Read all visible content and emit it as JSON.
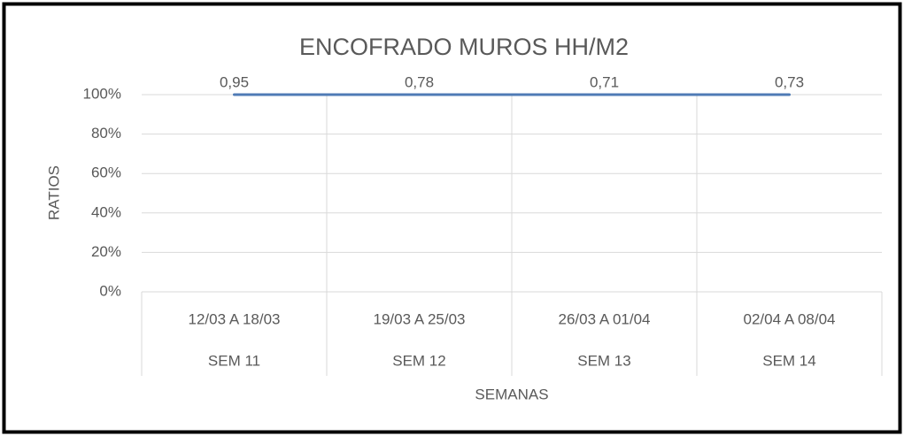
{
  "chart_data": {
    "type": "line",
    "stacking": "percent",
    "title": "ENCOFRADO MUROS HH/M2",
    "x_label": "SEMANAS",
    "y_label": "RATIOS",
    "categories": [
      "12/03 A 18/03",
      "19/03 A 25/03",
      "26/03 A 01/04",
      "02/04 A 08/04"
    ],
    "category_groups": [
      "SEM 11",
      "SEM 12",
      "SEM 13",
      "SEM 14"
    ],
    "series": [
      {
        "color": "#4f7bb5",
        "values": [
          0.95,
          0.78,
          0.71,
          0.73
        ],
        "value_labels": [
          "0,95",
          "0,78",
          "0,71",
          "0,73"
        ]
      }
    ],
    "ylim": [
      0,
      100
    ],
    "yticks": [
      {
        "value": 0,
        "label": "0%"
      },
      {
        "value": 20,
        "label": "20%"
      },
      {
        "value": 40,
        "label": "40%"
      },
      {
        "value": 60,
        "label": "60%"
      },
      {
        "value": 80,
        "label": "80%"
      },
      {
        "value": 100,
        "label": "100%"
      }
    ],
    "grid": true
  }
}
